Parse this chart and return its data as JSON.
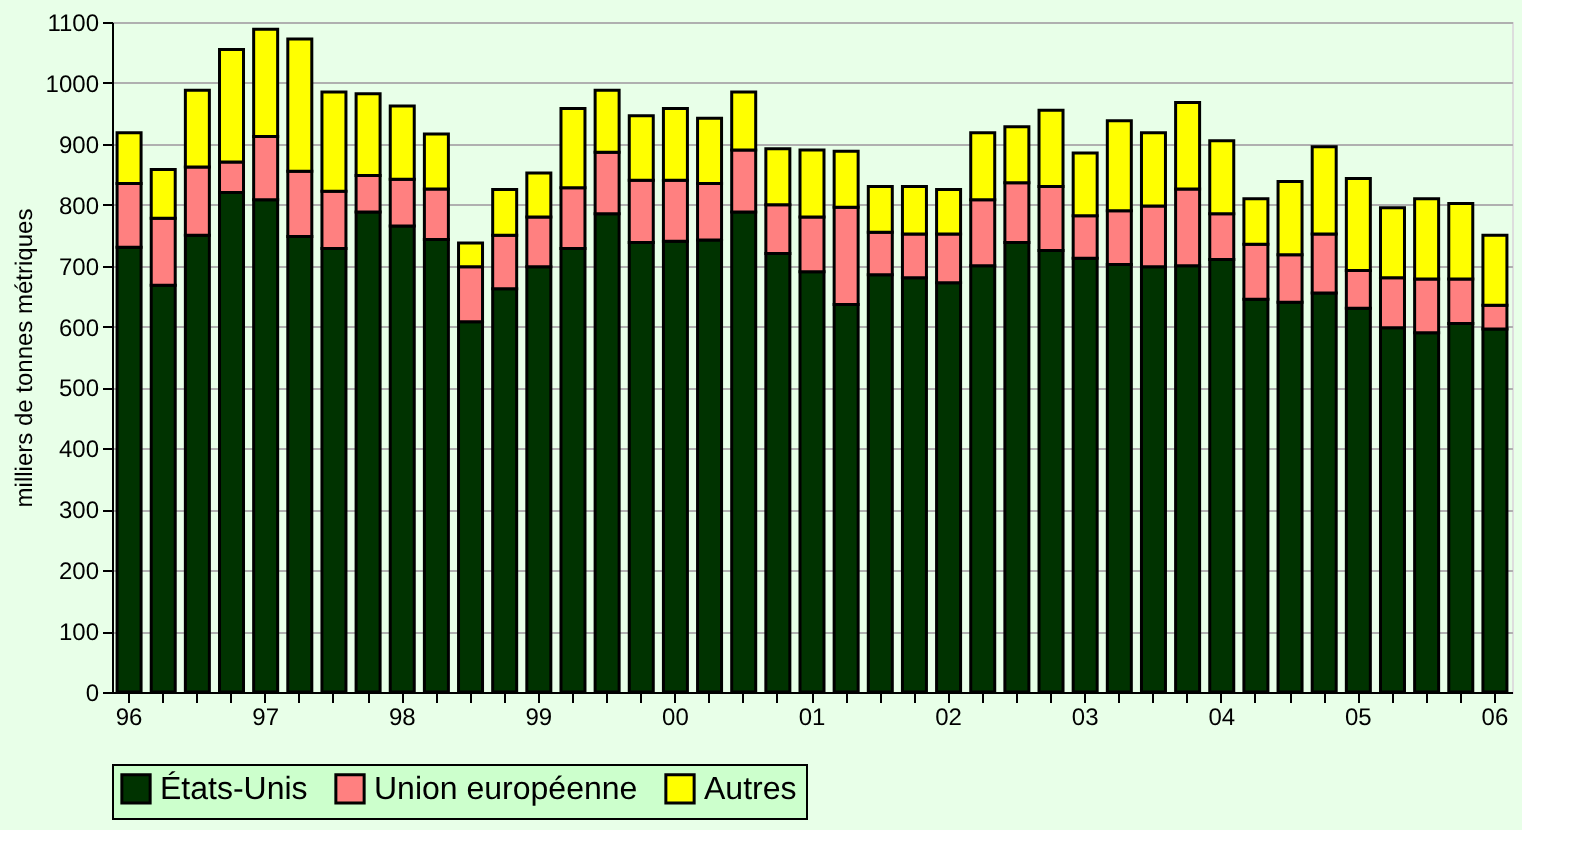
{
  "chart_data": {
    "type": "bar",
    "stacked": true,
    "ylabel": "milliers de tonnes métriques",
    "categories": [
      "96",
      null,
      null,
      null,
      "97",
      null,
      null,
      null,
      "98",
      null,
      null,
      null,
      "99",
      null,
      null,
      null,
      "00",
      null,
      null,
      null,
      "01",
      null,
      null,
      null,
      "02",
      null,
      null,
      null,
      "03",
      null,
      null,
      null,
      "04",
      null,
      null,
      null,
      "05",
      null,
      null,
      null,
      "06"
    ],
    "series": [
      {
        "name": "États-Unis",
        "color": "#003300",
        "values": [
          730,
          668,
          750,
          820,
          808,
          748,
          728,
          788,
          765,
          743,
          608,
          662,
          698,
          728,
          785,
          738,
          740,
          742,
          788,
          720,
          690,
          636,
          685,
          680,
          672,
          700,
          738,
          725,
          712,
          702,
          698,
          700,
          710,
          645,
          640,
          655,
          630,
          598,
          590,
          605,
          596
        ]
      },
      {
        "name": "Union européenne",
        "color": "#ff8080",
        "values": [
          105,
          110,
          112,
          50,
          104,
          107,
          94,
          60,
          77,
          83,
          90,
          88,
          82,
          100,
          101,
          102,
          100,
          93,
          102,
          80,
          90,
          160,
          70,
          72,
          80,
          108,
          98,
          105,
          70,
          88,
          100,
          126,
          75,
          90,
          78,
          97,
          62,
          82,
          88,
          73,
          39
        ]
      },
      {
        "name": "Autres",
        "color": "#ffff00",
        "values": [
          83,
          80,
          126,
          185,
          176,
          217,
          163,
          134,
          120,
          90,
          39,
          75,
          72,
          130,
          102,
          106,
          118,
          107,
          95,
          92,
          110,
          92,
          75,
          78,
          73,
          110,
          92,
          125,
          103,
          148,
          120,
          142,
          120,
          75,
          120,
          143,
          151,
          115,
          132,
          124,
          115
        ]
      }
    ],
    "ylim": [
      0,
      1100
    ],
    "yticks": [
      0,
      100,
      200,
      300,
      400,
      500,
      600,
      700,
      800,
      900,
      1000,
      1100
    ],
    "grid": "y",
    "legend": "bottom"
  }
}
